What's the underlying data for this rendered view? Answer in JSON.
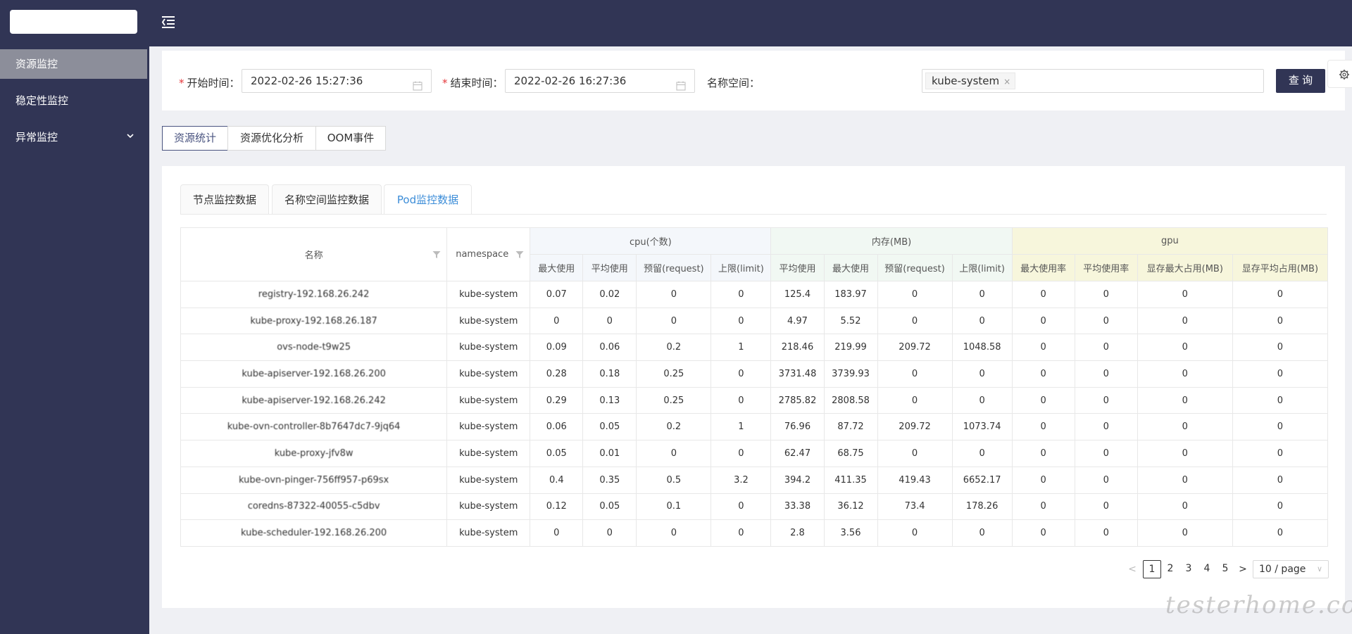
{
  "sidebar": {
    "items": [
      {
        "label": "资源监控"
      },
      {
        "label": "稳定性监控"
      },
      {
        "label": "异常监控"
      }
    ]
  },
  "query": {
    "start_label": "开始时间：",
    "start_value": "2022-02-26 15:27:36",
    "end_label": "结束时间：",
    "end_value": "2022-02-26 16:27:36",
    "ns_label": "名称空间：",
    "ns_tag": "kube-system",
    "ns_tag_remove": "×",
    "query_button": "查 询",
    "required_mark": "*"
  },
  "top_tabs": [
    "资源统计",
    "资源优化分析",
    "OOM事件"
  ],
  "card_tabs": [
    "节点监控数据",
    "名称空间监控数据",
    "Pod监控数据"
  ],
  "table": {
    "col_name": "名称",
    "col_ns": "namespace",
    "group_cpu": "cpu(个数)",
    "group_mem": "内存(MB)",
    "group_gpu": "gpu",
    "cpu_cols": [
      "最大使用",
      "平均使用",
      "预留(request)",
      "上限(limit)"
    ],
    "mem_cols": [
      "平均使用",
      "最大使用",
      "预留(request)",
      "上限(limit)"
    ],
    "gpu_cols": [
      "最大使用率",
      "平均使用率",
      "显存最大占用(MB)",
      "显存平均占用(MB)"
    ],
    "rows": [
      {
        "name": "registry-192.168.26.242",
        "ns": "kube-system",
        "c": [
          "0.07",
          "0.02",
          "0",
          "0"
        ],
        "m": [
          "125.4",
          "183.97",
          "0",
          "0"
        ],
        "g": [
          "0",
          "0",
          "0",
          "0"
        ]
      },
      {
        "name": "kube-proxy-192.168.26.187",
        "ns": "kube-system",
        "c": [
          "0",
          "0",
          "0",
          "0"
        ],
        "m": [
          "4.97",
          "5.52",
          "0",
          "0"
        ],
        "g": [
          "0",
          "0",
          "0",
          "0"
        ]
      },
      {
        "name": "ovs-node-t9w25",
        "ns": "kube-system",
        "c": [
          "0.09",
          "0.06",
          "0.2",
          "1"
        ],
        "m": [
          "218.46",
          "219.99",
          "209.72",
          "1048.58"
        ],
        "g": [
          "0",
          "0",
          "0",
          "0"
        ]
      },
      {
        "name": "kube-apiserver-192.168.26.200",
        "ns": "kube-system",
        "c": [
          "0.28",
          "0.18",
          "0.25",
          "0"
        ],
        "m": [
          "3731.48",
          "3739.93",
          "0",
          "0"
        ],
        "g": [
          "0",
          "0",
          "0",
          "0"
        ]
      },
      {
        "name": "kube-apiserver-192.168.26.242",
        "ns": "kube-system",
        "c": [
          "0.29",
          "0.13",
          "0.25",
          "0"
        ],
        "m": [
          "2785.82",
          "2808.58",
          "0",
          "0"
        ],
        "g": [
          "0",
          "0",
          "0",
          "0"
        ]
      },
      {
        "name": "kube-ovn-controller-8b7647dc7-9jq64",
        "ns": "kube-system",
        "c": [
          "0.06",
          "0.05",
          "0.2",
          "1"
        ],
        "m": [
          "76.96",
          "87.72",
          "209.72",
          "1073.74"
        ],
        "g": [
          "0",
          "0",
          "0",
          "0"
        ]
      },
      {
        "name": "kube-proxy-jfv8w",
        "ns": "kube-system",
        "c": [
          "0.05",
          "0.01",
          "0",
          "0"
        ],
        "m": [
          "62.47",
          "68.75",
          "0",
          "0"
        ],
        "g": [
          "0",
          "0",
          "0",
          "0"
        ]
      },
      {
        "name": "kube-ovn-pinger-756ff957-p69sx",
        "ns": "kube-system",
        "c": [
          "0.4",
          "0.35",
          "0.5",
          "3.2"
        ],
        "m": [
          "394.2",
          "411.35",
          "419.43",
          "6652.17"
        ],
        "g": [
          "0",
          "0",
          "0",
          "0"
        ]
      },
      {
        "name": "coredns-87322-40055-c5dbv",
        "ns": "kube-system",
        "c": [
          "0.12",
          "0.05",
          "0.1",
          "0"
        ],
        "m": [
          "33.38",
          "36.12",
          "73.4",
          "178.26"
        ],
        "g": [
          "0",
          "0",
          "0",
          "0"
        ]
      },
      {
        "name": "kube-scheduler-192.168.26.200",
        "ns": "kube-system",
        "c": [
          "0",
          "0",
          "0",
          "0"
        ],
        "m": [
          "2.8",
          "3.56",
          "0",
          "0"
        ],
        "g": [
          "0",
          "0",
          "0",
          "0"
        ]
      }
    ]
  },
  "pagination": {
    "prev": "<",
    "next": ">",
    "pages": [
      "1",
      "2",
      "3",
      "4",
      "5"
    ],
    "current": "1",
    "page_size": "10 / page",
    "page_size_arrow": "∨"
  },
  "watermark": "testerhome.com",
  "colors": {
    "nav_bg": "#313555",
    "active_tab": "#3c8dd8",
    "cpu_header": "#f4f7fb",
    "mem_header": "#f1f8f3",
    "gpu_header": "#f7f6dc"
  }
}
